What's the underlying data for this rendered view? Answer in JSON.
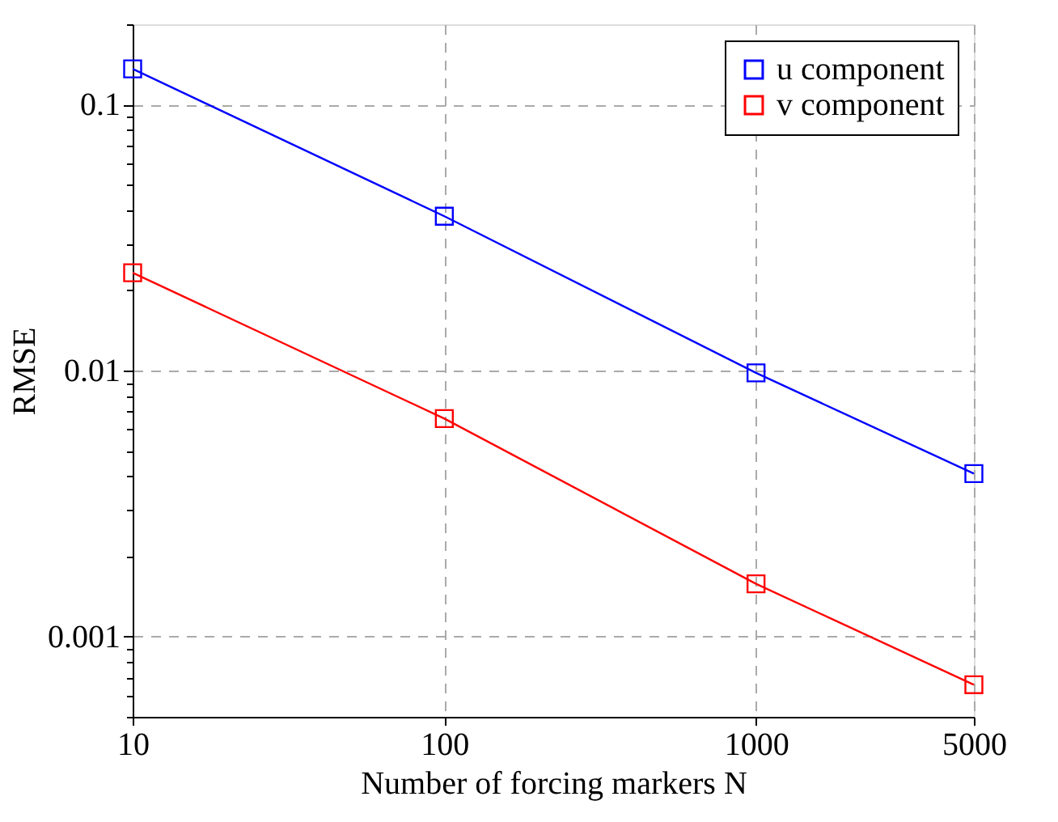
{
  "chart_data": {
    "type": "line",
    "xlabel": "Number of forcing markers N",
    "ylabel": "RMSE",
    "x": [
      10,
      100,
      1000,
      5000
    ],
    "series": [
      {
        "name": "u component",
        "color": "#0000ff",
        "values": [
          0.136,
          0.038,
          0.0098,
          0.0041
        ]
      },
      {
        "name": "v component",
        "color": "#ff0000",
        "values": [
          0.0233,
          0.0066,
          0.00158,
          0.00066
        ]
      }
    ],
    "log": "xy",
    "xlim": [
      10,
      5000
    ],
    "ylim": [
      0.0005,
      0.2
    ],
    "xticks": [
      10,
      100,
      1000,
      5000
    ],
    "yticks": [
      {
        "value": 0.0005,
        "label": null
      },
      {
        "value": 0.0006,
        "label": null
      },
      {
        "value": 0.0007,
        "label": null
      },
      {
        "value": 0.0008,
        "label": null
      },
      {
        "value": 0.0009,
        "label": null
      },
      0.001,
      {
        "value": 0.002,
        "label": null
      },
      {
        "value": 0.003,
        "label": null
      },
      {
        "value": 0.004,
        "label": null
      },
      {
        "value": 0.005,
        "label": null
      },
      {
        "value": 0.006,
        "label": null
      },
      {
        "value": 0.007,
        "label": null
      },
      {
        "value": 0.008,
        "label": null
      },
      {
        "value": 0.009,
        "label": null
      },
      0.01,
      {
        "value": 0.02,
        "label": null
      },
      {
        "value": 0.03,
        "label": null
      },
      {
        "value": 0.04,
        "label": null
      },
      {
        "value": 0.05,
        "label": null
      },
      {
        "value": 0.06,
        "label": null
      },
      {
        "value": 0.07,
        "label": null
      },
      {
        "value": 0.08,
        "label": null
      },
      {
        "value": 0.09,
        "label": null
      },
      0.1,
      {
        "value": 0.2,
        "label": null
      }
    ],
    "grid": true,
    "legend": "top right",
    "marker": "square",
    "line_style": "solid"
  }
}
